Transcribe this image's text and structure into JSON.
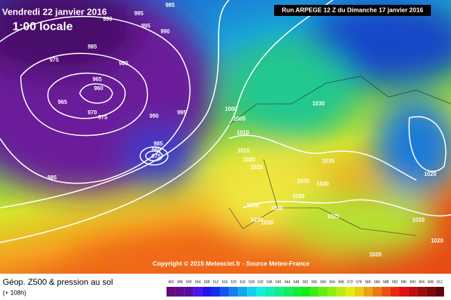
{
  "header": {
    "valid_date": "Vendredi 22 janvier 2016",
    "local_time": "1:00 locale",
    "run": "Run ARPEGE 12 Z du Dimanche 17 janvier 2016"
  },
  "copyright": "Copyright © 2015 Meteociel.fr - Source Meteo-France",
  "footer": {
    "title": "Géop. Z500 & pression au sol",
    "lead": "(+ 108h)"
  },
  "legend": {
    "labels": [
      492,
      496,
      500,
      504,
      508,
      512,
      516,
      520,
      524,
      528,
      532,
      536,
      540,
      544,
      548,
      552,
      556,
      560,
      564,
      568,
      572,
      576,
      580,
      584,
      588,
      592,
      596,
      600,
      604,
      608,
      612
    ]
  },
  "isobar_labels": [
    990,
    995,
    985,
    995,
    990,
    985,
    980,
    975,
    965,
    960,
    965,
    970,
    975,
    990,
    995,
    985,
    980,
    975,
    985,
    1000,
    1005,
    1010,
    1015,
    1020,
    1025,
    1030,
    1035,
    1030,
    1030,
    1030,
    1030,
    1030,
    1030,
    1030,
    1025,
    1020,
    1020,
    1020,
    1020
  ]
}
